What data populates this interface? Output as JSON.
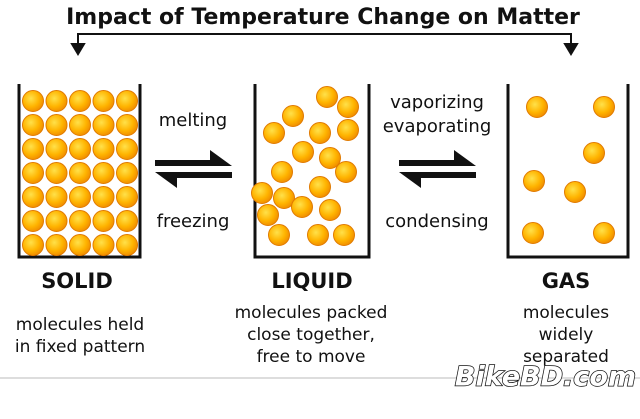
{
  "title": "Impact of Temperature Change on Matter",
  "states": [
    {
      "label": "SOLID",
      "description": [
        "molecules held",
        "in fixed pattern"
      ]
    },
    {
      "label": "LIQUID",
      "description": [
        "molecules packed",
        "close together,",
        "free to move"
      ]
    },
    {
      "label": "GAS",
      "description": [
        "molecules",
        "widely",
        "separated"
      ]
    }
  ],
  "transitions": [
    {
      "forward": [
        "melting"
      ],
      "reverse": [
        "freezing"
      ]
    },
    {
      "forward": [
        "vaporizing",
        "evaporating"
      ],
      "reverse": [
        "condensing"
      ]
    }
  ],
  "watermark": "BikeBD.com"
}
